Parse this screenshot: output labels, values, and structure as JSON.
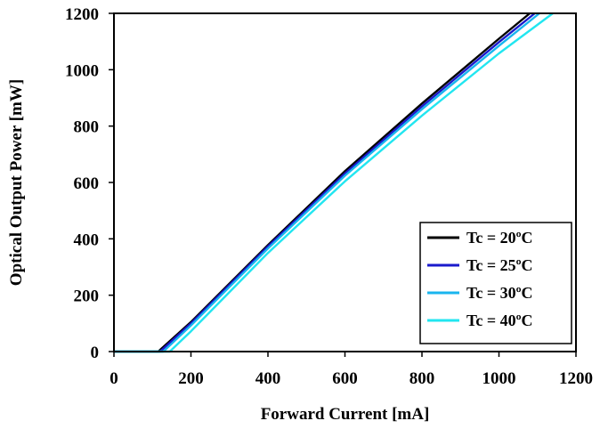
{
  "chart_data": {
    "type": "line",
    "title": "",
    "xlabel": "Forward Current [mA]",
    "ylabel": "Optical Output Power [mW]",
    "xlim": [
      0,
      1200
    ],
    "ylim": [
      0,
      1200
    ],
    "xticks": [
      0,
      200,
      400,
      600,
      800,
      1000,
      1200
    ],
    "yticks": [
      0,
      200,
      400,
      600,
      800,
      1000,
      1200
    ],
    "grid": false,
    "legend_position": "bottom-right",
    "series": [
      {
        "name": "Tc = 20ºC",
        "color": "#000000",
        "x": [
          0,
          115,
          200,
          400,
          600,
          800,
          1000,
          1080
        ],
        "y": [
          0,
          0,
          105,
          378,
          640,
          880,
          1110,
          1200
        ]
      },
      {
        "name": "Tc = 25ºC",
        "color": "#1a1acc",
        "x": [
          0,
          120,
          200,
          400,
          600,
          800,
          1000,
          1093
        ],
        "y": [
          0,
          0,
          100,
          373,
          632,
          870,
          1098,
          1200
        ]
      },
      {
        "name": "Tc = 30ºC",
        "color": "#19b5ee",
        "x": [
          0,
          128,
          200,
          400,
          600,
          800,
          1000,
          1105
        ],
        "y": [
          0,
          0,
          93,
          366,
          624,
          860,
          1085,
          1200
        ]
      },
      {
        "name": "Tc = 40ºC",
        "color": "#22e6f0",
        "x": [
          0,
          145,
          200,
          400,
          600,
          800,
          1000,
          1140
        ],
        "y": [
          0,
          0,
          72,
          350,
          604,
          837,
          1058,
          1200
        ]
      }
    ]
  }
}
